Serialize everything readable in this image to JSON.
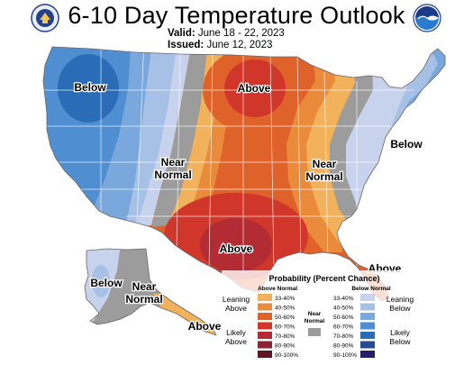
{
  "header": {
    "title": "6-10 Day Temperature Outlook",
    "valid_label": "Valid:",
    "valid_value": "June 18 - 22, 2023",
    "issued_label": "Issued:",
    "issued_value": "June 12, 2023"
  },
  "map_labels": {
    "below_west": "Below",
    "above_north": "Above",
    "near_normal_center": [
      "Near",
      "Normal"
    ],
    "near_normal_east": [
      "Near",
      "Normal"
    ],
    "below_east": "Below",
    "above_texas": "Above",
    "above_florida": "Above",
    "below_alaska": "Below",
    "near_normal_alaska": [
      "Near",
      "Normal"
    ],
    "above_alaska_se": "Above"
  },
  "legend": {
    "title": "Probability (Percent Chance)",
    "above_header": "Above Normal",
    "below_header": "Below Normal",
    "near_header": [
      "Near",
      "Normal"
    ],
    "leaning_above": [
      "Leaning",
      "Above"
    ],
    "likely_above": [
      "Likely",
      "Above"
    ],
    "leaning_below": [
      "Leaning",
      "Below"
    ],
    "likely_below": [
      "Likely",
      "Below"
    ],
    "ranges": [
      "33-40%",
      "40-50%",
      "50-60%",
      "60-70%",
      "70-80%",
      "80-90%",
      "90-100%"
    ],
    "above_colors": [
      "#f2b25b",
      "#ea8b3c",
      "#e0622b",
      "#d0362a",
      "#b32c33",
      "#8e2231",
      "#5e1623"
    ],
    "below_colors": [
      "#c7d3ec",
      "#a7c1e6",
      "#7aa8dc",
      "#4f8ed0",
      "#2a6cb6",
      "#274b93",
      "#221f6b"
    ],
    "near_color": "#9c9c9c"
  }
}
